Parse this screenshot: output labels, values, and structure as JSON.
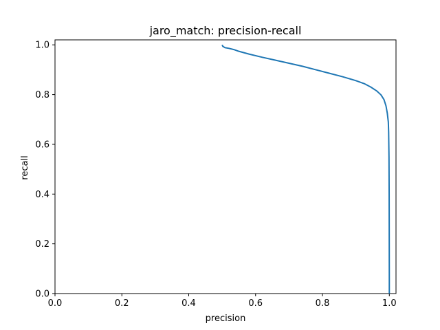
{
  "chart_data": {
    "type": "line",
    "title": "jaro_match: precision-recall",
    "xlabel": "precision",
    "ylabel": "recall",
    "xlim": [
      0.0,
      1.02
    ],
    "ylim": [
      0.0,
      1.02
    ],
    "grid": false,
    "xticks": [
      {
        "value": 0.0,
        "label": "0.0"
      },
      {
        "value": 0.2,
        "label": "0.2"
      },
      {
        "value": 0.4,
        "label": "0.4"
      },
      {
        "value": 0.6,
        "label": "0.6"
      },
      {
        "value": 0.8,
        "label": "0.8"
      },
      {
        "value": 1.0,
        "label": "1.0"
      }
    ],
    "yticks": [
      {
        "value": 0.0,
        "label": "0.0"
      },
      {
        "value": 0.2,
        "label": "0.2"
      },
      {
        "value": 0.4,
        "label": "0.4"
      },
      {
        "value": 0.6,
        "label": "0.6"
      },
      {
        "value": 0.8,
        "label": "0.8"
      },
      {
        "value": 1.0,
        "label": "1.0"
      }
    ],
    "series": [
      {
        "color": "#1f77b4",
        "x": [
          0.5,
          0.502,
          0.508,
          0.52,
          0.535,
          0.55,
          0.58,
          0.62,
          0.66,
          0.7,
          0.74,
          0.78,
          0.82,
          0.86,
          0.9,
          0.925,
          0.945,
          0.962,
          0.975,
          0.984,
          0.99,
          0.994,
          0.997,
          0.998,
          0.999,
          0.9995,
          0.9998,
          1.0,
          1.0
        ],
        "y": [
          1.0,
          0.994,
          0.989,
          0.986,
          0.981,
          0.974,
          0.963,
          0.95,
          0.938,
          0.926,
          0.914,
          0.9,
          0.886,
          0.872,
          0.856,
          0.844,
          0.83,
          0.815,
          0.799,
          0.78,
          0.755,
          0.725,
          0.69,
          0.65,
          0.55,
          0.4,
          0.2,
          0.05,
          0.0
        ]
      }
    ]
  }
}
